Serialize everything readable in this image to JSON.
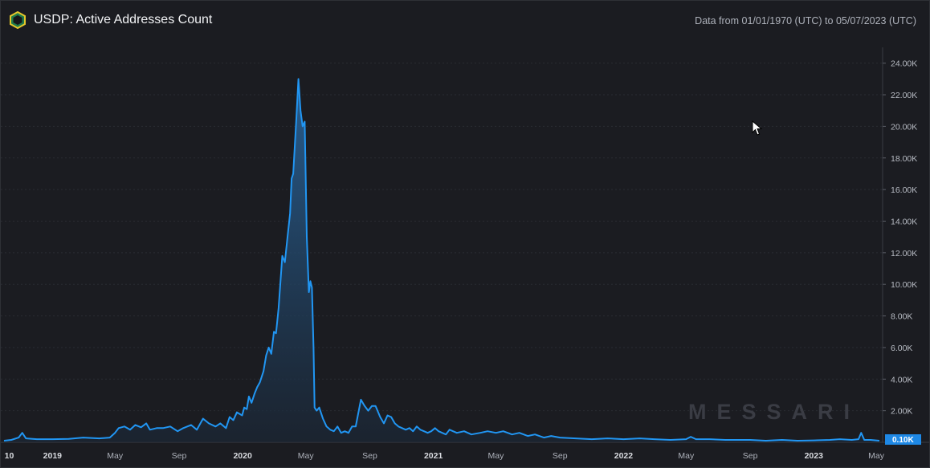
{
  "header": {
    "title": "USDP: Active Addresses Count",
    "range": "Data from 01/01/1970 (UTC) to 05/07/2023 (UTC)"
  },
  "watermark": "MESSARI",
  "icons": [
    "messari-logo-icon",
    "mouse-cursor-icon"
  ],
  "colors": {
    "line": "#2196f3",
    "badge": "#1e88e5",
    "background": "#1b1c21",
    "grid": "#2a2c33"
  },
  "chart_data": {
    "type": "area",
    "title": "USDP: Active Addresses Count",
    "x_start": "2018-09-30",
    "x_end": "2023-05-07",
    "xlabel": "",
    "ylabel": "",
    "ylim": [
      0,
      25000
    ],
    "grid": true,
    "current_value_label": "0.10K",
    "y_ticks": [
      "2.00K",
      "4.00K",
      "6.00K",
      "8.00K",
      "10.00K",
      "12.00K",
      "14.00K",
      "16.00K",
      "18.00K",
      "20.00K",
      "22.00K",
      "24.00K"
    ],
    "x_ticks": [
      {
        "label": "10",
        "date": "2018-10-01",
        "bold": true
      },
      {
        "label": "2019",
        "date": "2019-01-01",
        "bold": true
      },
      {
        "label": "May",
        "date": "2019-05-01",
        "bold": false
      },
      {
        "label": "Sep",
        "date": "2019-09-01",
        "bold": false
      },
      {
        "label": "2020",
        "date": "2020-01-01",
        "bold": true
      },
      {
        "label": "May",
        "date": "2020-05-01",
        "bold": false
      },
      {
        "label": "Sep",
        "date": "2020-09-01",
        "bold": false
      },
      {
        "label": "2021",
        "date": "2021-01-01",
        "bold": true
      },
      {
        "label": "May",
        "date": "2021-05-01",
        "bold": false
      },
      {
        "label": "Sep",
        "date": "2021-09-01",
        "bold": false
      },
      {
        "label": "2022",
        "date": "2022-01-01",
        "bold": true
      },
      {
        "label": "May",
        "date": "2022-05-01",
        "bold": false
      },
      {
        "label": "Sep",
        "date": "2022-09-01",
        "bold": false
      },
      {
        "label": "2023",
        "date": "2023-01-01",
        "bold": true
      },
      {
        "label": "May",
        "date": "2023-05-01",
        "bold": false
      }
    ],
    "series": [
      {
        "points": [
          [
            "2018-09-30",
            100
          ],
          [
            "2018-10-14",
            150
          ],
          [
            "2018-10-28",
            300
          ],
          [
            "2018-11-04",
            600
          ],
          [
            "2018-11-11",
            250
          ],
          [
            "2018-12-02",
            200
          ],
          [
            "2019-01-01",
            200
          ],
          [
            "2019-02-01",
            220
          ],
          [
            "2019-03-01",
            300
          ],
          [
            "2019-04-01",
            250
          ],
          [
            "2019-04-21",
            300
          ],
          [
            "2019-05-01",
            600
          ],
          [
            "2019-05-08",
            900
          ],
          [
            "2019-05-19",
            1000
          ],
          [
            "2019-05-30",
            800
          ],
          [
            "2019-06-09",
            1100
          ],
          [
            "2019-06-20",
            950
          ],
          [
            "2019-06-30",
            1200
          ],
          [
            "2019-07-07",
            800
          ],
          [
            "2019-07-20",
            900
          ],
          [
            "2019-08-01",
            900
          ],
          [
            "2019-08-15",
            1000
          ],
          [
            "2019-08-29",
            700
          ],
          [
            "2019-09-09",
            900
          ],
          [
            "2019-09-24",
            1100
          ],
          [
            "2019-10-05",
            800
          ],
          [
            "2019-10-17",
            1500
          ],
          [
            "2019-10-28",
            1200
          ],
          [
            "2019-11-10",
            1000
          ],
          [
            "2019-11-19",
            1200
          ],
          [
            "2019-11-30",
            900
          ],
          [
            "2019-12-07",
            1600
          ],
          [
            "2019-12-14",
            1400
          ],
          [
            "2019-12-21",
            1900
          ],
          [
            "2019-12-31",
            1700
          ],
          [
            "2020-01-04",
            2200
          ],
          [
            "2020-01-09",
            2100
          ],
          [
            "2020-01-13",
            2900
          ],
          [
            "2020-01-18",
            2500
          ],
          [
            "2020-01-24",
            3100
          ],
          [
            "2020-01-29",
            3500
          ],
          [
            "2020-02-03",
            3800
          ],
          [
            "2020-02-10",
            4500
          ],
          [
            "2020-02-15",
            5500
          ],
          [
            "2020-02-20",
            6000
          ],
          [
            "2020-02-25",
            5600
          ],
          [
            "2020-03-01",
            7000
          ],
          [
            "2020-03-05",
            6900
          ],
          [
            "2020-03-10",
            8500
          ],
          [
            "2020-03-17",
            11800
          ],
          [
            "2020-03-22",
            11400
          ],
          [
            "2020-03-27",
            13000
          ],
          [
            "2020-04-01",
            14500
          ],
          [
            "2020-04-04",
            16700
          ],
          [
            "2020-04-07",
            17000
          ],
          [
            "2020-04-13",
            20500
          ],
          [
            "2020-04-17",
            23000
          ],
          [
            "2020-04-21",
            21000
          ],
          [
            "2020-04-25",
            20000
          ],
          [
            "2020-04-29",
            20300
          ],
          [
            "2020-05-03",
            13000
          ],
          [
            "2020-05-07",
            9500
          ],
          [
            "2020-05-10",
            10200
          ],
          [
            "2020-05-13",
            9800
          ],
          [
            "2020-05-16",
            6000
          ],
          [
            "2020-05-18",
            2200
          ],
          [
            "2020-05-22",
            2000
          ],
          [
            "2020-05-27",
            2200
          ],
          [
            "2020-06-03",
            1500
          ],
          [
            "2020-06-10",
            1000
          ],
          [
            "2020-06-17",
            800
          ],
          [
            "2020-06-24",
            700
          ],
          [
            "2020-07-01",
            1000
          ],
          [
            "2020-07-08",
            600
          ],
          [
            "2020-07-15",
            700
          ],
          [
            "2020-07-22",
            600
          ],
          [
            "2020-07-29",
            1000
          ],
          [
            "2020-08-05",
            1000
          ],
          [
            "2020-08-15",
            2700
          ],
          [
            "2020-08-22",
            2300
          ],
          [
            "2020-08-29",
            2000
          ],
          [
            "2020-09-05",
            2300
          ],
          [
            "2020-09-12",
            2300
          ],
          [
            "2020-09-21",
            1600
          ],
          [
            "2020-09-28",
            1200
          ],
          [
            "2020-10-05",
            1700
          ],
          [
            "2020-10-12",
            1600
          ],
          [
            "2020-10-19",
            1200
          ],
          [
            "2020-10-26",
            1000
          ],
          [
            "2020-11-02",
            900
          ],
          [
            "2020-11-09",
            800
          ],
          [
            "2020-11-16",
            900
          ],
          [
            "2020-11-23",
            700
          ],
          [
            "2020-11-30",
            1000
          ],
          [
            "2020-12-07",
            800
          ],
          [
            "2020-12-14",
            700
          ],
          [
            "2020-12-21",
            600
          ],
          [
            "2020-12-28",
            700
          ],
          [
            "2021-01-04",
            900
          ],
          [
            "2021-01-11",
            700
          ],
          [
            "2021-01-18",
            600
          ],
          [
            "2021-01-25",
            500
          ],
          [
            "2021-02-01",
            800
          ],
          [
            "2021-02-15",
            600
          ],
          [
            "2021-03-01",
            700
          ],
          [
            "2021-03-15",
            500
          ],
          [
            "2021-04-01",
            600
          ],
          [
            "2021-04-15",
            700
          ],
          [
            "2021-05-01",
            600
          ],
          [
            "2021-05-15",
            700
          ],
          [
            "2021-06-01",
            500
          ],
          [
            "2021-06-15",
            600
          ],
          [
            "2021-07-01",
            400
          ],
          [
            "2021-07-15",
            500
          ],
          [
            "2021-08-01",
            300
          ],
          [
            "2021-08-15",
            400
          ],
          [
            "2021-09-01",
            300
          ],
          [
            "2021-10-01",
            250
          ],
          [
            "2021-11-01",
            200
          ],
          [
            "2021-12-01",
            250
          ],
          [
            "2022-01-01",
            200
          ],
          [
            "2022-02-01",
            250
          ],
          [
            "2022-03-01",
            200
          ],
          [
            "2022-04-01",
            150
          ],
          [
            "2022-05-01",
            200
          ],
          [
            "2022-05-10",
            350
          ],
          [
            "2022-05-20",
            200
          ],
          [
            "2022-06-15",
            200
          ],
          [
            "2022-07-15",
            150
          ],
          [
            "2022-09-01",
            150
          ],
          [
            "2022-10-01",
            100
          ],
          [
            "2022-11-01",
            150
          ],
          [
            "2022-12-01",
            100
          ],
          [
            "2023-01-01",
            120
          ],
          [
            "2023-02-01",
            150
          ],
          [
            "2023-02-20",
            200
          ],
          [
            "2023-03-15",
            150
          ],
          [
            "2023-03-28",
            200
          ],
          [
            "2023-04-02",
            600
          ],
          [
            "2023-04-08",
            150
          ],
          [
            "2023-04-20",
            150
          ],
          [
            "2023-05-07",
            100
          ]
        ]
      }
    ]
  }
}
